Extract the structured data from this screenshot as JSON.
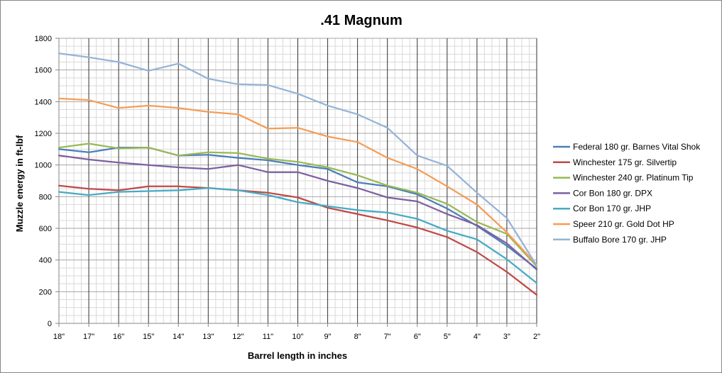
{
  "chart_data": {
    "type": "line",
    "title": ".41 Magnum",
    "xlabel": "Barrel length in inches",
    "ylabel": "Muzzle energy in ft-lbf",
    "ylim": [
      0,
      1800
    ],
    "y_ticks": [
      "0",
      "200",
      "400",
      "600",
      "800",
      "1000",
      "1200",
      "1400",
      "1600",
      "1800"
    ],
    "categories": [
      "18\"",
      "17\"",
      "16\"",
      "15\"",
      "14\"",
      "13\"",
      "12\"",
      "11\"",
      "10\"",
      "9\"",
      "8\"",
      "7\"",
      "6\"",
      "5\"",
      "4\"",
      "3\"",
      "2\""
    ],
    "grid": true,
    "legend_position": "right",
    "series": [
      {
        "name": "Federal 180 gr. Barnes Vital Shok",
        "color": "#4A7EBB",
        "values": [
          1100,
          1080,
          1110,
          1110,
          1060,
          1065,
          1045,
          1030,
          1000,
          975,
          890,
          865,
          815,
          725,
          615,
          490,
          345
        ]
      },
      {
        "name": "Winchester 175 gr. Silvertip",
        "color": "#BE4B48",
        "values": [
          870,
          850,
          840,
          865,
          865,
          855,
          840,
          825,
          795,
          730,
          690,
          650,
          605,
          545,
          450,
          325,
          180
        ]
      },
      {
        "name": "Winchester 240 gr. Platinum Tip",
        "color": "#98B954",
        "values": [
          1110,
          1135,
          1105,
          1110,
          1060,
          1080,
          1075,
          1040,
          1020,
          985,
          935,
          870,
          825,
          755,
          640,
          565,
          360
        ]
      },
      {
        "name": "Cor Bon 180 gr. DPX",
        "color": "#7D60A0",
        "values": [
          1060,
          1035,
          1015,
          1000,
          985,
          975,
          1000,
          955,
          955,
          900,
          855,
          795,
          770,
          690,
          620,
          505,
          340
        ]
      },
      {
        "name": "Cor Bon 170 gr. JHP",
        "color": "#46AAC5",
        "values": [
          830,
          810,
          830,
          835,
          840,
          855,
          840,
          810,
          765,
          740,
          715,
          700,
          660,
          585,
          530,
          405,
          255
        ]
      },
      {
        "name": "Speer 210 gr. Gold Dot HP",
        "color": "#F59D56",
        "values": [
          1420,
          1410,
          1360,
          1375,
          1360,
          1335,
          1320,
          1230,
          1235,
          1180,
          1145,
          1045,
          975,
          865,
          750,
          575,
          370
        ]
      },
      {
        "name": "Buffalo Bore 170 gr. JHP",
        "color": "#95B3D7",
        "values": [
          1705,
          1680,
          1650,
          1595,
          1640,
          1545,
          1510,
          1505,
          1450,
          1375,
          1320,
          1235,
          1060,
          995,
          825,
          665,
          365
        ]
      }
    ]
  }
}
